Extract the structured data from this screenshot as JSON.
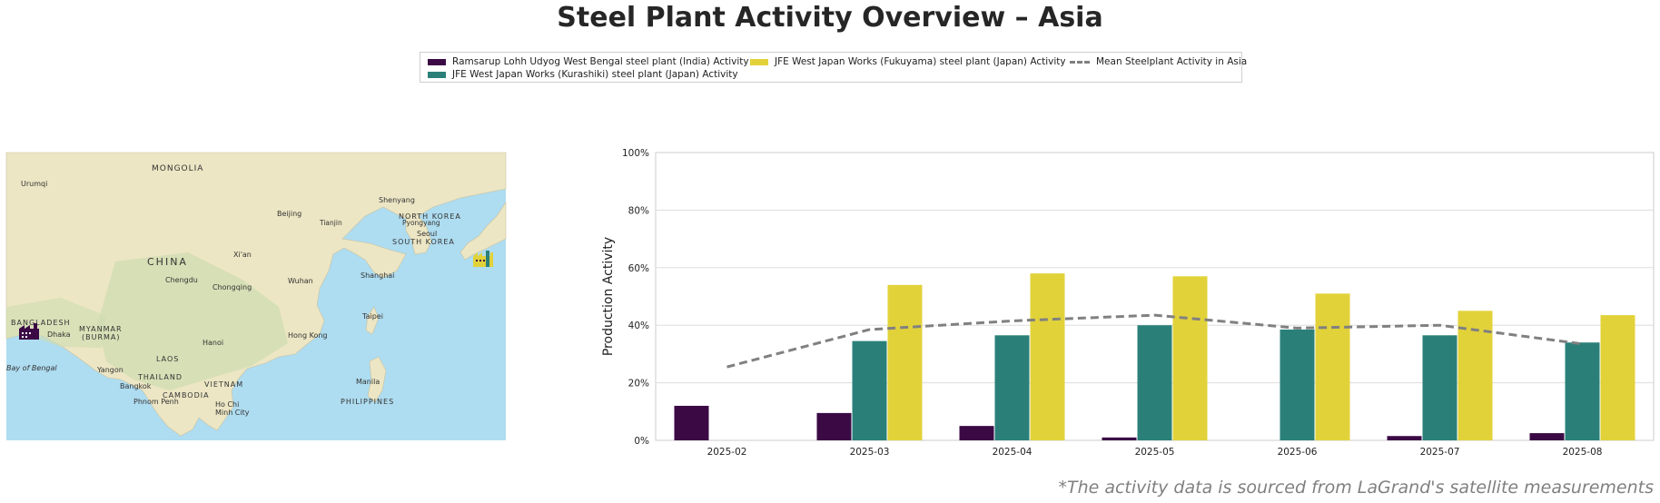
{
  "title": "Steel Plant Activity Overview – Asia",
  "footnote": "*The activity data is sourced from LaGrand's satellite measurements",
  "legend": [
    {
      "label": "Ramsarup Lohh Udyog West Bengal steel plant (India) Activity",
      "color": "#3b0a45",
      "kind": "bar"
    },
    {
      "label": "JFE West Japan Works (Kurashiki) steel plant (Japan) Activity",
      "color": "#2a8079",
      "kind": "bar"
    },
    {
      "label": "JFE West Japan Works (Fukuyama) steel plant (Japan) Activity",
      "color": "#e2d23a",
      "kind": "bar"
    },
    {
      "label": "Mean Steelplant Activity in Asia",
      "color": "#808080",
      "kind": "line"
    }
  ],
  "map": {
    "labels": {
      "mongolia": "MONGOLIA",
      "urumqi": "Urumqi",
      "beijing": "Beijing",
      "tianjin": "Tianjin",
      "shenyang": "Shenyang",
      "north_korea": "NORTH KOREA",
      "pyongyang": "Pyongyang",
      "seoul": "Seoul",
      "south_korea": "SOUTH KOREA",
      "china": "CHINA",
      "xian": "Xi'an",
      "chengdu": "Chengdu",
      "chongqing": "Chongqing",
      "wuhan": "Wuhan",
      "shanghai": "Shanghai",
      "taipei": "Taipei",
      "bangladesh": "BANGLADESH",
      "dhaka": "Dhaka",
      "myanmar": "MYANMAR",
      "burma": "(BURMA)",
      "hanoi": "Hanoi",
      "hong_kong": "Hong Kong",
      "laos": "LAOS",
      "bay_of_bengal": "Bay of Bengal",
      "yangon": "Yangon",
      "thailand": "THAILAND",
      "vietnam": "VIETNAM",
      "bangkok": "Bangkok",
      "cambodia": "CAMBODIA",
      "phnom_penh": "Phnom Penh",
      "ho_chi": "Ho Chi",
      "minh_city": "Minh City",
      "manila": "Manila",
      "philippines": "PHILIPPINES"
    },
    "icons": [
      "factory-icon-india",
      "factory-icon-japan"
    ]
  },
  "chart_data": {
    "type": "bar",
    "categories": [
      "2025-02",
      "2025-03",
      "2025-04",
      "2025-05",
      "2025-06",
      "2025-07",
      "2025-08"
    ],
    "series": [
      {
        "name": "Ramsarup Lohh Udyog West Bengal steel plant (India) Activity",
        "color": "#3b0a45",
        "values": [
          12,
          9.5,
          5,
          1,
          null,
          1.5,
          2.5
        ]
      },
      {
        "name": "JFE West Japan Works (Kurashiki) steel plant (Japan) Activity",
        "color": "#2a8079",
        "values": [
          null,
          34.5,
          36.5,
          40,
          38.5,
          36.5,
          34
        ]
      },
      {
        "name": "JFE West Japan Works (Fukuyama) steel plant (Japan) Activity",
        "color": "#e2d23a",
        "values": [
          null,
          54,
          58,
          57,
          51,
          45,
          43.5
        ]
      }
    ],
    "line": {
      "name": "Mean Steelplant Activity in Asia",
      "color": "#808080",
      "values": [
        25.5,
        38.5,
        41.5,
        43.5,
        39,
        40,
        33.5
      ]
    },
    "ylabel": "Production Activity",
    "xlabel": "",
    "ylim": [
      0,
      100
    ],
    "yticks": [
      "0%",
      "20%",
      "40%",
      "60%",
      "80%",
      "100%"
    ],
    "grid": true,
    "legend_position": "top-center"
  }
}
